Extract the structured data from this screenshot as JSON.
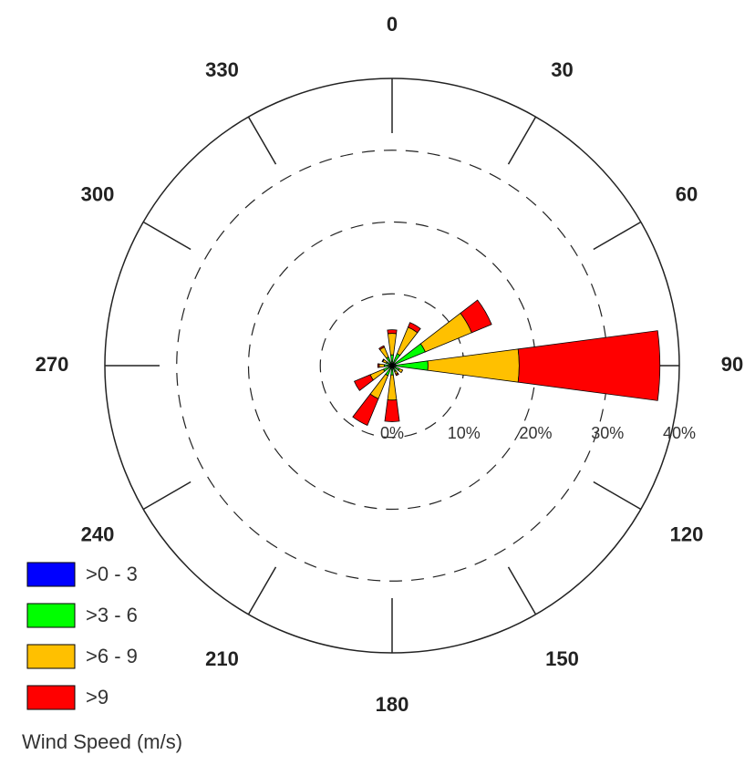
{
  "chart_data": {
    "type": "windrose",
    "directions": [
      0,
      30,
      60,
      90,
      120,
      150,
      180,
      210,
      240,
      270,
      300,
      330
    ],
    "series": [
      {
        "name": ">0 - 3",
        "color": "#0000ff",
        "values": [
          0.3,
          0.3,
          0.5,
          0.5,
          0.3,
          0.3,
          0.3,
          0.3,
          0.3,
          0.3,
          0.3,
          0.3
        ]
      },
      {
        "name": ">3 - 6",
        "color": "#00ff00",
        "values": [
          1.2,
          1.5,
          4.5,
          4.5,
          0.8,
          0.6,
          1,
          1.2,
          1,
          0.8,
          0.6,
          1
        ]
      },
      {
        "name": ">6 - 9",
        "color": "#ffc000",
        "values": [
          3,
          4,
          7,
          12.7,
          0.5,
          0.4,
          3.5,
          3.5,
          2,
          0.7,
          0.5,
          1.5
        ]
      },
      {
        "name": ">9",
        "color": "#ff0000",
        "values": [
          0.5,
          0.7,
          3,
          19.6,
          0,
          0.2,
          3,
          4,
          2.4,
          0.2,
          0.1,
          0.2
        ]
      }
    ],
    "rlim": [
      0,
      40
    ],
    "rticks": [
      {
        "value": 0,
        "label": "0%"
      },
      {
        "value": 10,
        "label": "10%"
      },
      {
        "value": 20,
        "label": "20%"
      },
      {
        "value": 30,
        "label": "30%"
      },
      {
        "value": 40,
        "label": "40%"
      }
    ],
    "angle_ticks": [
      0,
      30,
      60,
      90,
      120,
      150,
      180,
      210,
      240,
      270,
      300,
      330
    ],
    "legend_title": "Wind Speed (m/s)"
  }
}
